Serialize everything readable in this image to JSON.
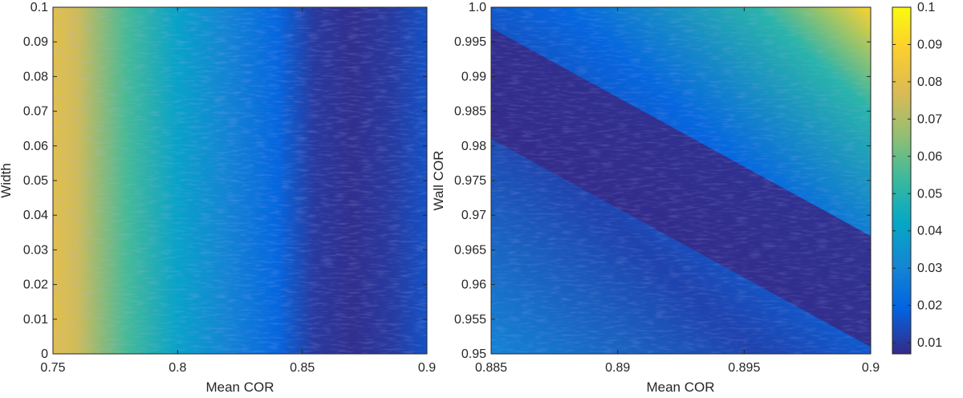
{
  "chart_data": [
    {
      "type": "heatmap",
      "title": "",
      "xlabel": "Mean COR",
      "ylabel": "Width",
      "xlim": [
        0.75,
        0.9
      ],
      "ylim": [
        0,
        0.1
      ],
      "xticks": [
        0.75,
        0.8,
        0.85,
        0.9
      ],
      "xtick_labels": [
        "0.75",
        "0.8",
        "0.85",
        "0.9"
      ],
      "yticks": [
        0,
        0.01,
        0.02,
        0.03,
        0.04,
        0.05,
        0.06,
        0.07,
        0.08,
        0.09,
        0.1
      ],
      "ytick_labels": [
        "0",
        "0.01",
        "0.02",
        "0.03",
        "0.04",
        "0.05",
        "0.06",
        "0.07",
        "0.08",
        "0.09",
        "0.1"
      ],
      "grid": false,
      "trend": "value is highest (~0.08) near Mean COR 0.75, decreasing with Mean COR to a minimum (~0.008) around 0.86-0.89; nearly independent of Width",
      "profile": {
        "x": [
          0.75,
          0.76,
          0.78,
          0.8,
          0.82,
          0.84,
          0.855,
          0.87,
          0.885,
          0.9
        ],
        "value": [
          0.08,
          0.075,
          0.055,
          0.04,
          0.03,
          0.02,
          0.01,
          0.008,
          0.01,
          0.015
        ]
      }
    },
    {
      "type": "heatmap",
      "title": "",
      "xlabel": "Mean COR",
      "ylabel": "Wall COR",
      "xlim": [
        0.885,
        0.9
      ],
      "ylim": [
        0.95,
        1.0
      ],
      "xticks": [
        0.885,
        0.89,
        0.895,
        0.9
      ],
      "xtick_labels": [
        "0.885",
        "0.89",
        "0.895",
        "0.9"
      ],
      "yticks": [
        0.95,
        0.955,
        0.96,
        0.965,
        0.97,
        0.975,
        0.98,
        0.985,
        0.99,
        0.995,
        1.0
      ],
      "ytick_labels": [
        "0.95",
        "0.955",
        "0.96",
        "0.965",
        "0.97",
        "0.975",
        "0.98",
        "0.985",
        "0.99",
        "0.995",
        "1.0"
      ],
      "grid": false,
      "trend": "dark minimum (~0.008) along a diagonal valley from (0.885, 0.99) to (0.9, 0.96); value rises to ~0.09 at the top-right corner (0.9, 1.0) and to ~0.03 at the bottom-left corner",
      "valley": {
        "x": [
          0.885,
          0.89,
          0.895,
          0.9
        ],
        "wall_cor": [
          0.99,
          0.98,
          0.97,
          0.96
        ]
      }
    }
  ],
  "colorbar": {
    "min": 0.007,
    "max": 0.1,
    "ticks": [
      0.01,
      0.02,
      0.03,
      0.04,
      0.05,
      0.06,
      0.07,
      0.08,
      0.09,
      0.1
    ],
    "tick_labels": [
      "0.01",
      "0.02",
      "0.03",
      "0.04",
      "0.05",
      "0.06",
      "0.07",
      "0.08",
      "0.09",
      "0.1"
    ],
    "colormap": "parula",
    "colors": [
      "#352a87",
      "#0363e1",
      "#1485d4",
      "#06a7c6",
      "#38b99e",
      "#92bf73",
      "#d9ba56",
      "#fcce2e",
      "#f9fb0e"
    ]
  },
  "colors": {
    "axis": "#262626"
  }
}
